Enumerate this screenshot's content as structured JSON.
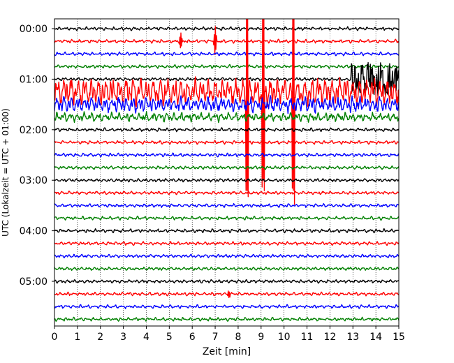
{
  "chart_data": {
    "type": "line",
    "title": "",
    "xlabel": "Zeit  [min]",
    "ylabel": "UTC (Lokalzeit = UTC + 01:00)",
    "xlim": [
      0,
      15
    ],
    "x_ticks": [
      "0",
      "1",
      "2",
      "3",
      "4",
      "5",
      "6",
      "7",
      "8",
      "9",
      "10",
      "11",
      "12",
      "13",
      "14",
      "15"
    ],
    "y_ticks": [
      "00:00",
      "01:00",
      "02:00",
      "03:00",
      "04:00",
      "05:00"
    ],
    "grid": "vertical dotted at each minute",
    "trace_interval_minutes": 15,
    "line_colors": [
      "#000000",
      "#ff0000",
      "#0000ff",
      "#008000"
    ],
    "series": [
      {
        "trace_start": "00:00",
        "color": "#000000",
        "baseline_amplitude": "low",
        "events": []
      },
      {
        "trace_start": "00:15",
        "color": "#ff0000",
        "baseline_amplitude": "low",
        "events": [
          {
            "x_min": 5.5,
            "description": "isolated spikes"
          },
          {
            "x_min": 7.0,
            "description": "large spike"
          }
        ]
      },
      {
        "trace_start": "00:30",
        "color": "#0000ff",
        "baseline_amplitude": "low",
        "events": []
      },
      {
        "trace_start": "00:45",
        "color": "#008000",
        "baseline_amplitude": "low",
        "events": []
      },
      {
        "trace_start": "01:00",
        "color": "#000000",
        "baseline_amplitude": "low",
        "events": [
          {
            "x_min": 12.9,
            "x_max": 15,
            "description": "high-amplitude burst"
          }
        ]
      },
      {
        "trace_start": "01:15",
        "color": "#ff0000",
        "baseline_amplitude": "very high",
        "events": [
          {
            "x_min": 0,
            "x_max": 15,
            "description": "large oscillations, clipped spikes near 8.4, 9.1, 10.4 min"
          }
        ]
      },
      {
        "trace_start": "01:30",
        "color": "#0000ff",
        "baseline_amplitude": "high",
        "events": [
          {
            "x_min": 0,
            "x_max": 15,
            "description": "large oscillations"
          }
        ]
      },
      {
        "trace_start": "01:45",
        "color": "#008000",
        "baseline_amplitude": "medium",
        "events": [
          {
            "x_min": 0,
            "x_max": 15,
            "description": "moderate oscillations"
          }
        ]
      },
      {
        "trace_start": "02:00",
        "color": "#000000",
        "baseline_amplitude": "low",
        "events": []
      },
      {
        "trace_start": "02:15",
        "color": "#ff0000",
        "baseline_amplitude": "low",
        "events": []
      },
      {
        "trace_start": "02:30",
        "color": "#0000ff",
        "baseline_amplitude": "low",
        "events": []
      },
      {
        "trace_start": "02:45",
        "color": "#008000",
        "baseline_amplitude": "low",
        "events": []
      },
      {
        "trace_start": "03:00",
        "color": "#000000",
        "baseline_amplitude": "low",
        "events": []
      },
      {
        "trace_start": "03:15",
        "color": "#ff0000",
        "baseline_amplitude": "low",
        "events": []
      },
      {
        "trace_start": "03:30",
        "color": "#0000ff",
        "baseline_amplitude": "low",
        "events": []
      },
      {
        "trace_start": "03:45",
        "color": "#008000",
        "baseline_amplitude": "low",
        "events": []
      },
      {
        "trace_start": "04:00",
        "color": "#000000",
        "baseline_amplitude": "low",
        "events": []
      },
      {
        "trace_start": "04:15",
        "color": "#ff0000",
        "baseline_amplitude": "low",
        "events": []
      },
      {
        "trace_start": "04:30",
        "color": "#0000ff",
        "baseline_amplitude": "low",
        "events": []
      },
      {
        "trace_start": "04:45",
        "color": "#008000",
        "baseline_amplitude": "low",
        "events": []
      },
      {
        "trace_start": "05:00",
        "color": "#000000",
        "baseline_amplitude": "low",
        "events": []
      },
      {
        "trace_start": "05:15",
        "color": "#ff0000",
        "baseline_amplitude": "low",
        "events": [
          {
            "x_min": 7.6,
            "description": "small spike"
          }
        ]
      },
      {
        "trace_start": "05:30",
        "color": "#0000ff",
        "baseline_amplitude": "low",
        "events": []
      },
      {
        "trace_start": "05:45",
        "color": "#008000",
        "baseline_amplitude": "low",
        "events": []
      }
    ]
  }
}
